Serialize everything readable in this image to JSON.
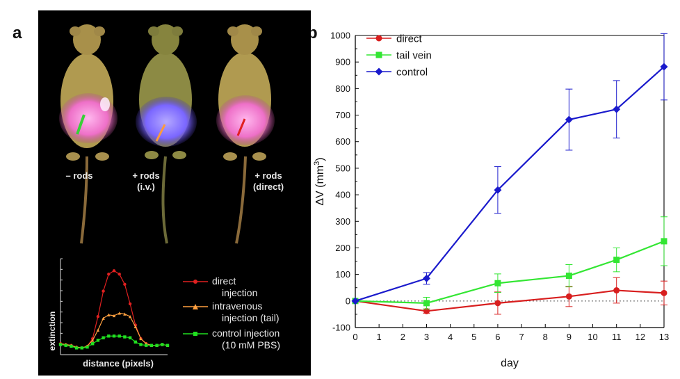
{
  "panel_a": {
    "letter": "a",
    "mice": [
      {
        "label_line1": "– rods",
        "label_line2": "",
        "band_color": "#ff7fd0",
        "line_color": "#38d038"
      },
      {
        "label_line1": "+ rods",
        "label_line2": "(i.v.)",
        "band_color": "#8c6cff",
        "line_color": "#ff9b3a"
      },
      {
        "label_line1": "+ rods",
        "label_line2": "(direct)",
        "band_color": "#ff7fd0",
        "line_color": "#e02020"
      }
    ],
    "inset_chart": {
      "ylabel": "extinction",
      "xlabel": "distance (pixels)",
      "legend": [
        {
          "line1": "direct",
          "line2": "injection",
          "color": "#e02020",
          "marker": "circle"
        },
        {
          "line1": "intravenous",
          "line2": "injection (tail)",
          "color": "#ffa040",
          "marker": "triangle"
        },
        {
          "line1": "control injection",
          "line2": "(10 mM PBS)",
          "color": "#20e020",
          "marker": "square"
        }
      ]
    }
  },
  "chart_data": [
    {
      "type": "line",
      "panel": "b",
      "title": "",
      "xlabel": "day",
      "ylabel": "ΔV (mm³)",
      "ylabel_main": "ΔV (mm",
      "ylabel_sup": "3",
      "ylabel_close": ")",
      "xlim": [
        0,
        13
      ],
      "ylim": [
        -100,
        1000
      ],
      "x_ticks": [
        0,
        1,
        2,
        3,
        4,
        5,
        6,
        7,
        8,
        9,
        10,
        11,
        12,
        13
      ],
      "y_ticks": [
        -100,
        0,
        100,
        200,
        300,
        400,
        500,
        600,
        700,
        800,
        900,
        1000
      ],
      "x_tick_labels": [
        "0",
        "1",
        "2",
        "3",
        "4",
        "5",
        "6",
        "7",
        "8",
        "9",
        "10",
        "11",
        "12",
        "13"
      ],
      "y_tick_labels": [
        "-100",
        "0",
        "100",
        "200",
        "300",
        "400",
        "500",
        "600",
        "700",
        "800",
        "900",
        "1000"
      ],
      "reference_line": 0,
      "legend_position": "top-left",
      "series": [
        {
          "name": "direct",
          "color": "#d81e1e",
          "marker": "circle",
          "x": [
            0,
            3,
            6,
            9,
            11,
            13
          ],
          "y": [
            0,
            -38,
            -8,
            17,
            40,
            30
          ],
          "err": [
            0,
            8,
            42,
            38,
            48,
            45
          ]
        },
        {
          "name": "tail vein",
          "color": "#33e633",
          "marker": "square",
          "x": [
            0,
            3,
            6,
            9,
            11,
            13
          ],
          "y": [
            0,
            -8,
            67,
            95,
            155,
            225
          ],
          "err": [
            0,
            22,
            35,
            42,
            45,
            92
          ]
        },
        {
          "name": "control",
          "color": "#1a1acc",
          "marker": "diamond",
          "x": [
            0,
            3,
            6,
            9,
            11,
            13
          ],
          "y": [
            0,
            85,
            418,
            683,
            722,
            882
          ],
          "err": [
            0,
            22,
            88,
            115,
            108,
            125
          ]
        }
      ]
    },
    {
      "type": "line",
      "panel": "a-inset",
      "title": "",
      "xlabel": "distance (pixels)",
      "ylabel": "extinction",
      "xlim": [
        0,
        40
      ],
      "ylim": [
        0,
        100
      ],
      "series": [
        {
          "name": "direct injection",
          "color": "#e02020",
          "marker": "circle",
          "x": [
            0,
            2,
            4,
            6,
            8,
            10,
            12,
            14,
            16,
            18,
            20,
            22,
            24,
            26,
            28,
            30,
            32,
            34,
            36,
            38,
            40
          ],
          "y": [
            8,
            7,
            6,
            4,
            3,
            5,
            14,
            40,
            70,
            90,
            94,
            90,
            78,
            55,
            30,
            14,
            8,
            6,
            6,
            7,
            6
          ]
        },
        {
          "name": "intravenous injection (tail)",
          "color": "#ffa040",
          "marker": "triangle",
          "x": [
            0,
            2,
            4,
            6,
            8,
            10,
            12,
            14,
            16,
            18,
            20,
            22,
            24,
            26,
            28,
            30,
            32,
            34,
            36,
            38,
            40
          ],
          "y": [
            8,
            7,
            6,
            4,
            3,
            5,
            12,
            24,
            38,
            42,
            41,
            44,
            43,
            40,
            28,
            14,
            8,
            6,
            6,
            7,
            6
          ]
        },
        {
          "name": "control injection (10 mM PBS)",
          "color": "#20e020",
          "marker": "square",
          "x": [
            0,
            2,
            4,
            6,
            8,
            10,
            12,
            14,
            16,
            18,
            20,
            22,
            24,
            26,
            28,
            30,
            32,
            34,
            36,
            38,
            40
          ],
          "y": [
            7,
            6,
            5,
            3,
            3,
            4,
            8,
            12,
            15,
            17,
            17,
            17,
            16,
            15,
            10,
            7,
            6,
            6,
            6,
            7,
            6
          ]
        }
      ]
    }
  ],
  "panel_b": {
    "letter": "b"
  }
}
